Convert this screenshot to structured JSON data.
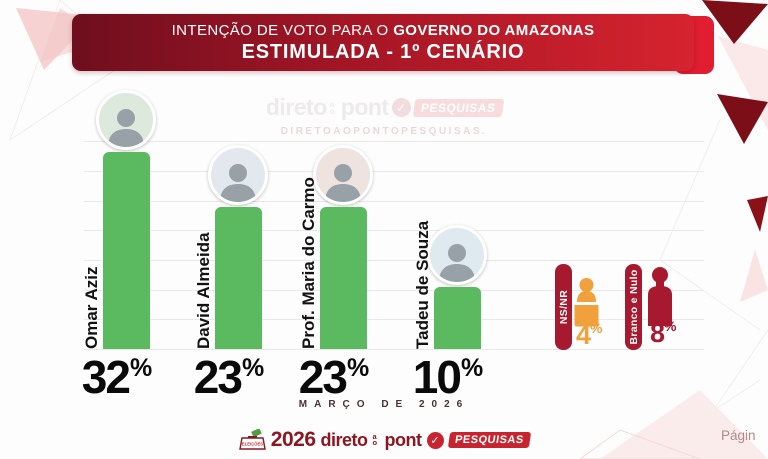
{
  "header": {
    "line1_regular": "INTENÇÃO DE VOTO PARA O",
    "line1_bold": "GOVERNO DO AMAZONAS",
    "line2": "ESTIMULADA - 1º CENÁRIO"
  },
  "watermark": {
    "brand_word1": "direto",
    "brand_word2": "ao",
    "brand_word3": "pont",
    "badge": "PESQUISAS",
    "handle": "DIRETOAOPONTOPESQUISAS."
  },
  "chart_data": {
    "type": "bar",
    "title": "INTENÇÃO DE VOTO PARA O GOVERNO DO AMAZONAS",
    "subtitle": "ESTIMULADA - 1º CENÁRIO",
    "categories": [
      "Omar Aziz",
      "David Almeida",
      "Prof. Maria do Carmo",
      "Tadeu de Souza"
    ],
    "values": [
      32,
      23,
      23,
      10
    ],
    "unit": "%",
    "bar_color": "#5BB95F",
    "ylim": [
      0,
      35
    ],
    "gridlines": "horizontal, every 5%",
    "legend_position": "none",
    "other_responses": [
      {
        "label": "NS/NR",
        "value": 4,
        "color": "#F0A13C"
      },
      {
        "label": "Branco e Nulo",
        "value": 8,
        "color": "#A6192E"
      }
    ],
    "period": "MARÇO DE 2026"
  },
  "footer": {
    "election_label": "ELEIÇÕES",
    "year": "2026",
    "brand_word1": "direto",
    "brand_word2": "ao",
    "brand_word3": "pont",
    "badge": "PESQUISAS",
    "page_label": "Págin"
  },
  "colors": {
    "banner_dark": "#6E0E1E",
    "banner_bright": "#D6232F",
    "bar_green": "#5BB95F",
    "pill_maroon": "#A6192E",
    "orange": "#F0A13C",
    "dark_red": "#A6192E"
  }
}
